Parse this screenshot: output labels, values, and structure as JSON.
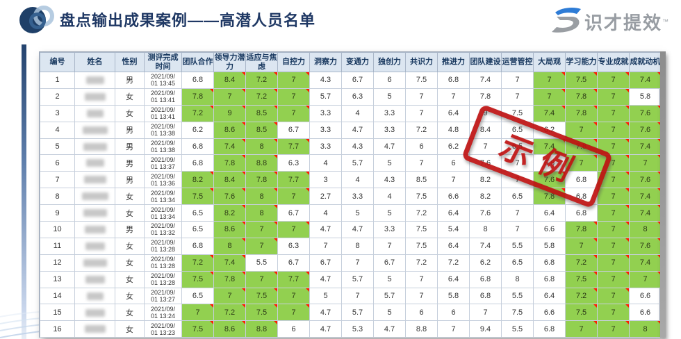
{
  "page": {
    "title": "盘点输出成果案例——高潜人员名单",
    "brand": {
      "name": "识才提效",
      "trademark": "™"
    },
    "stamp_label": "示例"
  },
  "colors": {
    "title_text": "#1F3864",
    "header_bg": "#DCE6F1",
    "header_text": "#17375E",
    "highlight_green": "#92D050",
    "comment_marker_red": "#FF1A00",
    "stamp_red": "#BE1212",
    "brand_gray": "#989DA3",
    "brand_blue": "#2E7CD6"
  },
  "table": {
    "columns": [
      "编号",
      "姓名",
      "性别",
      "测评完成时间",
      "团队合作",
      "领导力潜力",
      "适应与焦虑",
      "自控力",
      "洞察力",
      "变通力",
      "独创力",
      "共识力",
      "推进力",
      "团队建设",
      "运营管控",
      "大局观",
      "学习能力",
      "专业成就",
      "成就动机"
    ],
    "highlight_columns": [
      "团队合作",
      "领导力潜力",
      "适应与焦虑",
      "自控力",
      "大局观",
      "学习能力",
      "专业成就",
      "成就动机"
    ],
    "highlight_threshold": 7,
    "rows": [
      {
        "id": 1,
        "name": "",
        "gender": "男",
        "completed_at": "2021/09/01 13:45",
        "scores": [
          6.8,
          8.4,
          7.2,
          7,
          4.3,
          6.7,
          6,
          7.5,
          6.8,
          7.4,
          7,
          7,
          7.5,
          7,
          7.4
        ]
      },
      {
        "id": 2,
        "name": "",
        "gender": "女",
        "completed_at": "2021/09/01 13:41",
        "scores": [
          7.8,
          7,
          7.2,
          7,
          5.7,
          6.3,
          5,
          7,
          7,
          7.8,
          7,
          7,
          7.8,
          7,
          5.8
        ]
      },
      {
        "id": 3,
        "name": "",
        "gender": "女",
        "completed_at": "2021/09/01 13:41",
        "scores": [
          7.2,
          9,
          8.5,
          7,
          3.3,
          4,
          3.3,
          7,
          6.4,
          9,
          7.5,
          7.4,
          7.8,
          7,
          7.6
        ]
      },
      {
        "id": 4,
        "name": "",
        "gender": "男",
        "completed_at": "2021/09/01 13:38",
        "scores": [
          6.2,
          8.6,
          8.5,
          6.7,
          3.3,
          4.7,
          3.3,
          7.2,
          4.8,
          8.4,
          6.5,
          6.2,
          7,
          7,
          7.6
        ]
      },
      {
        "id": 5,
        "name": "",
        "gender": "男",
        "completed_at": "2021/09/01 13:38",
        "scores": [
          6.8,
          7.4,
          8,
          7.7,
          3.3,
          4.3,
          4.7,
          6,
          6.2,
          7,
          6.5,
          7.4,
          7.8,
          7,
          7.4
        ]
      },
      {
        "id": 6,
        "name": "",
        "gender": "男",
        "completed_at": "2021/09/01 13:37",
        "scores": [
          6.8,
          7.8,
          8.8,
          6.3,
          4,
          5.7,
          5,
          7,
          6,
          7.6,
          7,
          6.6,
          7,
          7,
          7
        ]
      },
      {
        "id": 7,
        "name": "",
        "gender": "男",
        "completed_at": "2021/09/01 13:36",
        "scores": [
          8.2,
          8.4,
          7.8,
          7.7,
          3,
          4,
          4.3,
          8.5,
          7,
          8.2,
          7,
          7.6,
          6.8,
          7,
          7.6
        ]
      },
      {
        "id": 8,
        "name": "",
        "gender": "女",
        "completed_at": "2021/09/01 13:34",
        "scores": [
          7.5,
          7.6,
          8,
          7,
          2.7,
          3.3,
          4,
          7.5,
          6.6,
          8.2,
          6.5,
          7.8,
          6.8,
          7,
          7.4
        ]
      },
      {
        "id": 9,
        "name": "",
        "gender": "女",
        "completed_at": "2021/09/01 13:34",
        "scores": [
          6.5,
          8.2,
          8,
          6.7,
          4,
          5,
          5,
          7.2,
          6.4,
          7.6,
          7,
          6.4,
          6.8,
          7,
          7.4
        ]
      },
      {
        "id": 10,
        "name": "",
        "gender": "男",
        "completed_at": "2021/09/01 13:32",
        "scores": [
          6.5,
          8.6,
          7,
          7,
          4.7,
          4.7,
          3.3,
          7.5,
          5.4,
          8,
          7,
          6.6,
          7.8,
          7,
          8
        ]
      },
      {
        "id": 11,
        "name": "",
        "gender": "女",
        "completed_at": "2021/09/01 13:28",
        "scores": [
          6.8,
          8,
          7,
          6.3,
          7,
          8,
          7,
          7.5,
          6.4,
          7.4,
          5.5,
          5.8,
          7,
          7,
          7.6
        ]
      },
      {
        "id": 12,
        "name": "",
        "gender": "女",
        "completed_at": "2021/09/01 13:28",
        "scores": [
          7.2,
          7.4,
          5.5,
          6.7,
          6.7,
          7,
          6.7,
          7.2,
          7.2,
          6.2,
          6.5,
          6.8,
          7.2,
          7,
          7.4
        ]
      },
      {
        "id": 13,
        "name": "",
        "gender": "女",
        "completed_at": "2021/09/01 13:28",
        "scores": [
          7.5,
          7.8,
          7,
          7.7,
          4.7,
          5.7,
          5,
          7,
          6.4,
          6.8,
          8,
          6.8,
          7.5,
          7,
          7
        ]
      },
      {
        "id": 14,
        "name": "",
        "gender": "女",
        "completed_at": "2021/09/01 13:27",
        "scores": [
          6.5,
          7,
          7.5,
          7,
          5,
          7,
          5.7,
          7,
          5.8,
          6.8,
          5.5,
          6.4,
          7.2,
          7,
          6.6
        ]
      },
      {
        "id": 15,
        "name": "",
        "gender": "女",
        "completed_at": "2021/09/01 13:24",
        "scores": [
          7,
          7.2,
          7.5,
          7,
          4.7,
          5.7,
          5,
          6,
          6,
          7,
          7.5,
          6.6,
          7.5,
          7,
          6.6
        ]
      },
      {
        "id": 16,
        "name": "",
        "gender": "女",
        "completed_at": "2021/09/01 13:23",
        "scores": [
          7.5,
          8.6,
          8.8,
          6,
          4.7,
          5.3,
          4.7,
          8.8,
          7,
          9.4,
          5.5,
          6.8,
          7,
          7,
          8
        ]
      }
    ]
  }
}
